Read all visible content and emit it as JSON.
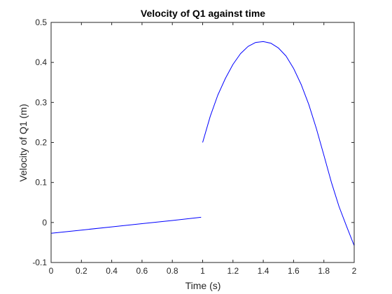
{
  "chart_data": {
    "type": "line",
    "title": "Velocity of Q1 against time",
    "xlabel": "Time (s)",
    "ylabel": "Velocity of Q1 (m)",
    "xlim": [
      0,
      2
    ],
    "ylim": [
      -0.1,
      0.5
    ],
    "xticks": [
      "0",
      "0.2",
      "0.4",
      "0.6",
      "0.8",
      "1",
      "1.2",
      "1.4",
      "1.6",
      "1.8",
      "2"
    ],
    "yticks": [
      "-0.1",
      "0",
      "0.1",
      "0.2",
      "0.3",
      "0.4",
      "0.5"
    ],
    "grid": false,
    "box": true,
    "series": [
      {
        "segments": [
          {
            "x": [
              0,
              0.2,
              0.4,
              0.6,
              0.8,
              0.99
            ],
            "y": [
              -0.027,
              -0.019,
              -0.011,
              -0.003,
              0.005,
              0.013
            ]
          },
          {
            "x": [
              1.0,
              1.05,
              1.1,
              1.15,
              1.2,
              1.25,
              1.3,
              1.35,
              1.4,
              1.45,
              1.5,
              1.55,
              1.6,
              1.65,
              1.7,
              1.75,
              1.8,
              1.85,
              1.9,
              1.95,
              2.0
            ],
            "y": [
              0.2,
              0.265,
              0.318,
              0.36,
              0.395,
              0.422,
              0.44,
              0.45,
              0.452,
              0.448,
              0.436,
              0.416,
              0.385,
              0.345,
              0.295,
              0.235,
              0.168,
              0.1,
              0.04,
              -0.01,
              -0.058
            ]
          }
        ]
      }
    ],
    "colors": {
      "line": "#0000ff",
      "axis": "#262626"
    }
  }
}
